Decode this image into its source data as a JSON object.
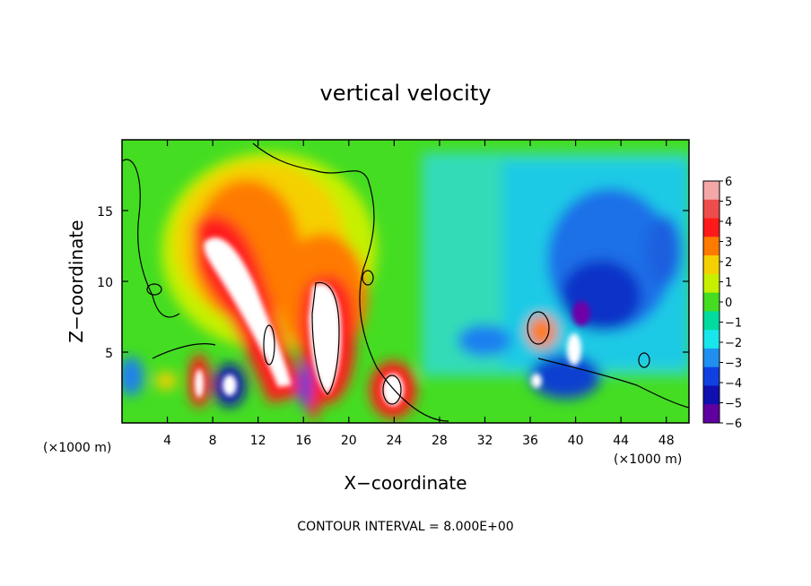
{
  "chart_data": {
    "type": "heatmap",
    "title": "vertical velocity",
    "xlabel": "X−coordinate",
    "ylabel": "Z−coordinate",
    "x_unit_left": "(×1000 m)",
    "x_unit_right": "(×1000 m)",
    "footer": "CONTOUR INTERVAL = 8.000E+00",
    "xlim": [
      0,
      50
    ],
    "ylim": [
      0,
      20
    ],
    "xticks": [
      4,
      8,
      12,
      16,
      20,
      24,
      28,
      32,
      36,
      40,
      44,
      48
    ],
    "xtick_labels": [
      "4",
      "8",
      "12",
      "16",
      "20",
      "24",
      "28",
      "32",
      "36",
      "40",
      "44",
      "48"
    ],
    "yticks": [
      5,
      10,
      15
    ],
    "ytick_labels": [
      "5",
      "10",
      "15"
    ],
    "colorbar": {
      "levels": [
        6,
        5,
        4,
        3,
        2,
        1,
        0,
        -1,
        -2,
        -3,
        -4,
        -5,
        -6
      ],
      "labels": [
        "6",
        "5",
        "4",
        "3",
        "2",
        "1",
        "0",
        "−1",
        "−2",
        "−3",
        "−4",
        "−5",
        "−6"
      ],
      "colors": [
        "#f4a7a7",
        "#ee4d4d",
        "#ff1a1a",
        "#ff7a00",
        "#f5d000",
        "#c6f000",
        "#44dd22",
        "#00dca0",
        "#18e6ea",
        "#2090f0",
        "#1040e0",
        "#1010b0",
        "#6000a0"
      ]
    },
    "features": [
      {
        "kind": "updraft",
        "x": 10.5,
        "z": 9.0,
        "value": 8
      },
      {
        "kind": "updraft",
        "x": 18.5,
        "z": 7.0,
        "value": 8
      },
      {
        "kind": "updraft",
        "x": 23.8,
        "z": 2.5,
        "value": 6
      },
      {
        "kind": "updraft",
        "x": 7.0,
        "z": 2.8,
        "value": 6
      },
      {
        "kind": "updraft",
        "x": 16.5,
        "z": 2.0,
        "value": 6
      },
      {
        "kind": "updraft",
        "x": 37.0,
        "z": 6.5,
        "value": 4
      },
      {
        "kind": "downdraft",
        "x": 9.8,
        "z": 2.6,
        "value": -5
      },
      {
        "kind": "downdraft",
        "x": 15.2,
        "z": 2.5,
        "value": -4
      },
      {
        "kind": "downdraft",
        "x": 42.0,
        "z": 10.0,
        "value": -5
      },
      {
        "kind": "downdraft",
        "x": 40.5,
        "z": 6.5,
        "value": -6
      },
      {
        "kind": "downdraft",
        "x": 33.0,
        "z": 6.0,
        "value": -3
      }
    ]
  }
}
